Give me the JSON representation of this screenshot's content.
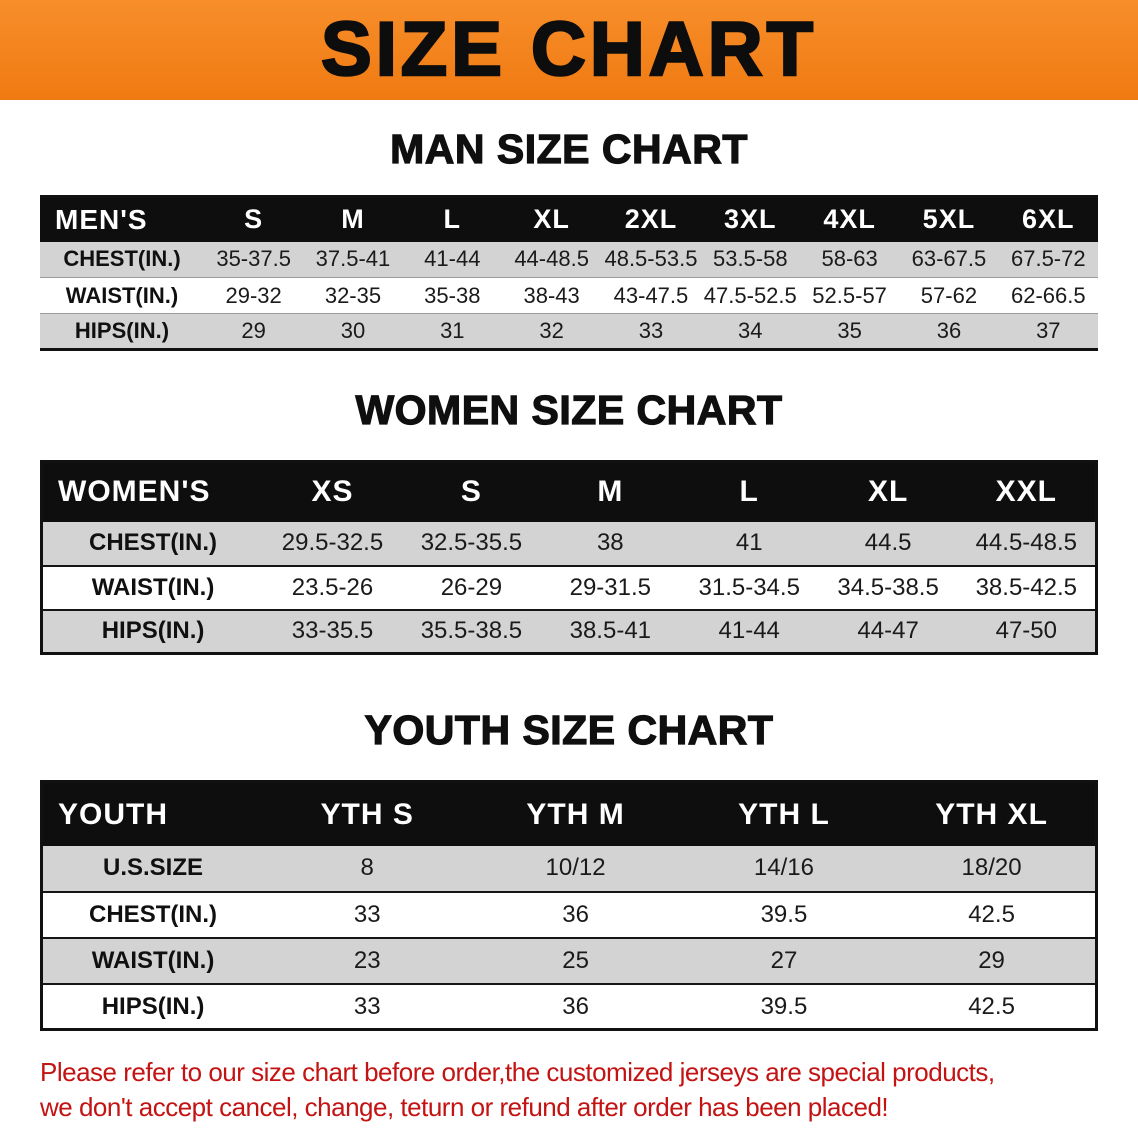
{
  "banner": {
    "title": "SIZE CHART"
  },
  "headings": {
    "men": "MAN SIZE CHART",
    "women": "WOMEN SIZE CHART",
    "youth": "YOUTH SIZE CHART"
  },
  "tables": {
    "men": {
      "header": [
        "MEN'S",
        "S",
        "M",
        "L",
        "XL",
        "2XL",
        "3XL",
        "4XL",
        "5XL",
        "6XL"
      ],
      "rows": [
        {
          "label": "CHEST(IN.)",
          "values": [
            "35-37.5",
            "37.5-41",
            "41-44",
            "44-48.5",
            "48.5-53.5",
            "53.5-58",
            "58-63",
            "63-67.5",
            "67.5-72"
          ]
        },
        {
          "label": "WAIST(IN.)",
          "values": [
            "29-32",
            "32-35",
            "35-38",
            "38-43",
            "43-47.5",
            "47.5-52.5",
            "52.5-57",
            "57-62",
            "62-66.5"
          ]
        },
        {
          "label": "HIPS(IN.)",
          "values": [
            "29",
            "30",
            "31",
            "32",
            "33",
            "34",
            "35",
            "36",
            "37"
          ]
        }
      ]
    },
    "women": {
      "header": [
        "WOMEN'S",
        "XS",
        "S",
        "M",
        "L",
        "XL",
        "XXL"
      ],
      "rows": [
        {
          "label": "CHEST(IN.)",
          "values": [
            "29.5-32.5",
            "32.5-35.5",
            "38",
            "41",
            "44.5",
            "44.5-48.5"
          ]
        },
        {
          "label": "WAIST(IN.)",
          "values": [
            "23.5-26",
            "26-29",
            "29-31.5",
            "31.5-34.5",
            "34.5-38.5",
            "38.5-42.5"
          ]
        },
        {
          "label": "HIPS(IN.)",
          "values": [
            "33-35.5",
            "35.5-38.5",
            "38.5-41",
            "41-44",
            "44-47",
            "47-50"
          ]
        }
      ]
    },
    "youth": {
      "header": [
        "YOUTH",
        "YTH S",
        "YTH M",
        "YTH L",
        "YTH XL"
      ],
      "rows": [
        {
          "label": "U.S.SIZE",
          "values": [
            "8",
            "10/12",
            "14/16",
            "18/20"
          ]
        },
        {
          "label": "CHEST(IN.)",
          "values": [
            "33",
            "36",
            "39.5",
            "42.5"
          ]
        },
        {
          "label": "WAIST(IN.)",
          "values": [
            "23",
            "25",
            "27",
            "29"
          ]
        },
        {
          "label": "HIPS(IN.)",
          "values": [
            "33",
            "36",
            "39.5",
            "42.5"
          ]
        }
      ]
    }
  },
  "footer": {
    "line1": "Please refer to our size chart before order,the customized jerseys are special products,",
    "line2": "we don't accept cancel, change, teturn or refund after order has been placed!"
  },
  "colors": {
    "banner_bg": "#f5831f",
    "table_header_bg": "#0e0e0e",
    "table_header_text": "#ffffff",
    "row_alt_bg": "#d3d3d3",
    "footer_text": "#c31313"
  }
}
